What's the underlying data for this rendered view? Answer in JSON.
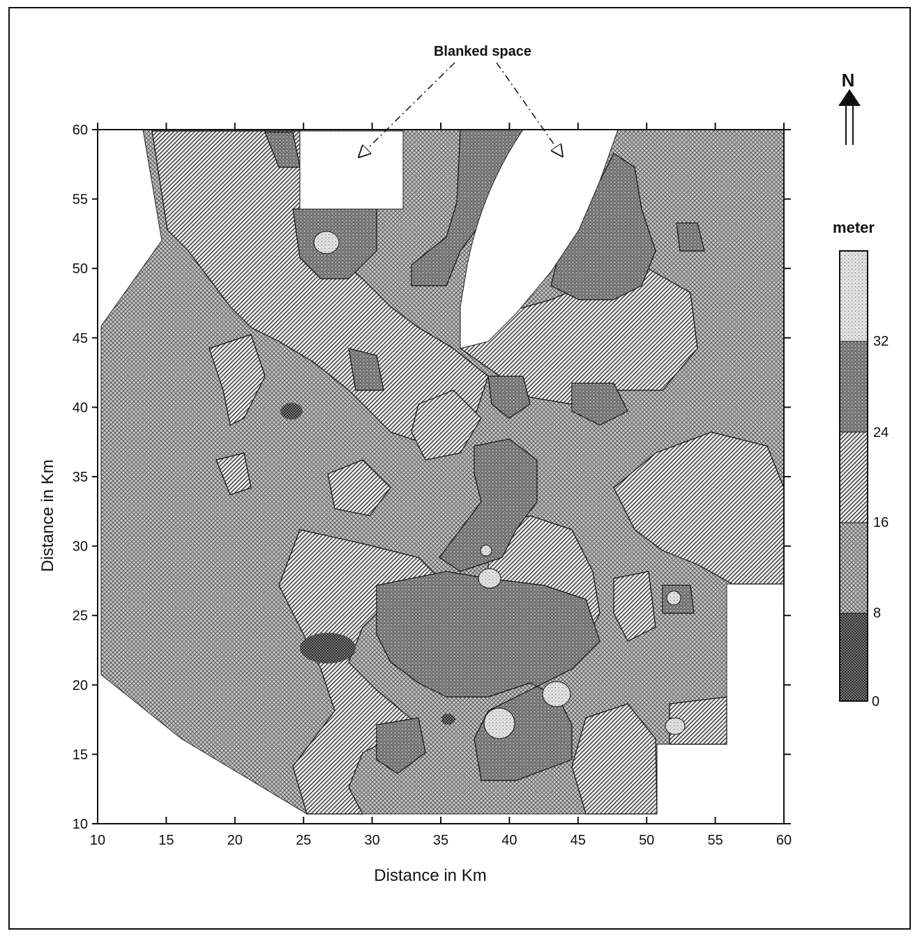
{
  "annotation": {
    "text": "Blanked space"
  },
  "north_arrow": {
    "label": "N"
  },
  "axes": {
    "x_label": "Distance in Km",
    "y_label": "Distance in Km",
    "x_ticks": [
      "10",
      "15",
      "20",
      "25",
      "30",
      "35",
      "40",
      "45",
      "50",
      "55",
      "60"
    ],
    "y_ticks": [
      "60",
      "55",
      "50",
      "45",
      "40",
      "35",
      "30",
      "25",
      "20",
      "15",
      "10"
    ]
  },
  "legend": {
    "title": "meter",
    "levels": [
      "32",
      "24",
      "16",
      "8",
      "0"
    ],
    "classes": [
      {
        "range": [
          0,
          8
        ],
        "pattern": "fine-crosshatch"
      },
      {
        "range": [
          8,
          16
        ],
        "pattern": "light-crosshatch"
      },
      {
        "range": [
          16,
          24
        ],
        "pattern": "diagonal-hatch"
      },
      {
        "range": [
          24,
          32
        ],
        "pattern": "dark-stipple"
      },
      {
        "range": [
          32,
          40
        ],
        "pattern": "light-stipple"
      }
    ]
  },
  "chart_data": {
    "type": "heatmap",
    "variable": "meter",
    "xlabel": "Distance in Km",
    "ylabel": "Distance in Km",
    "xlim": [
      10,
      60
    ],
    "ylim": [
      10,
      60
    ],
    "contour_levels": [
      0,
      8,
      16,
      24,
      32
    ],
    "annotations": [
      "Blanked space"
    ]
  }
}
